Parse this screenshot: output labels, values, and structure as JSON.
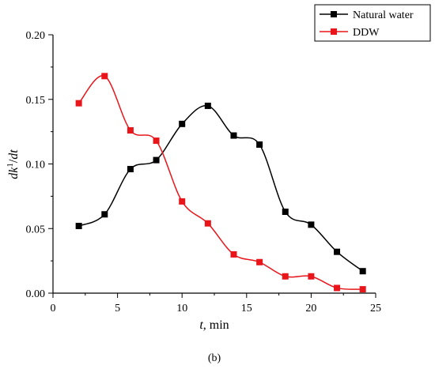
{
  "chart_data": {
    "type": "line",
    "title": "",
    "xlabel": {
      "var": "t",
      "unit": ", min"
    },
    "ylabel": {
      "d": "d",
      "k": "k",
      "sup": "1",
      "slash": "/",
      "t": "dt"
    },
    "xlim": [
      0,
      25
    ],
    "ylim": [
      0,
      0.2
    ],
    "xticks": [
      0,
      5,
      10,
      15,
      20,
      25
    ],
    "xtick_labels": [
      "0",
      "5",
      "10",
      "15",
      "20",
      "25"
    ],
    "yticks": [
      0,
      0.05,
      0.1,
      0.15,
      0.2
    ],
    "ytick_labels": [
      "0.00",
      "0.05",
      "0.10",
      "0.15",
      "0.20"
    ],
    "grid": false,
    "legend_position": "top-right",
    "series": [
      {
        "name": "Natural water",
        "color": "#000000",
        "marker": "square",
        "x": [
          2,
          4,
          6,
          8,
          10,
          12,
          14,
          16,
          18,
          20,
          22,
          24
        ],
        "y": [
          0.052,
          0.061,
          0.096,
          0.103,
          0.131,
          0.145,
          0.122,
          0.115,
          0.063,
          0.053,
          0.032,
          0.017
        ]
      },
      {
        "name": "DDW",
        "color": "#e8161b",
        "marker": "square",
        "x": [
          2,
          4,
          6,
          8,
          10,
          12,
          14,
          16,
          18,
          20,
          22,
          24
        ],
        "y": [
          0.147,
          0.168,
          0.126,
          0.118,
          0.071,
          0.054,
          0.03,
          0.024,
          0.013,
          0.013,
          0.004,
          0.003
        ]
      }
    ]
  },
  "caption": "(b)"
}
